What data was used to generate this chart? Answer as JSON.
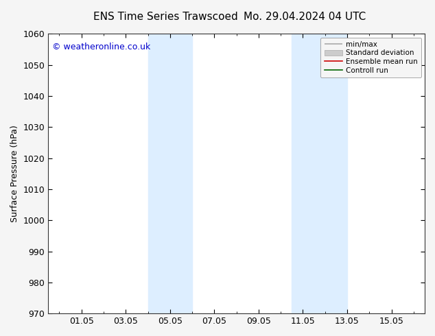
{
  "title_left": "ENS Time Series Trawscoed",
  "title_right": "Mo. 29.04.2024 04 UTC",
  "ylabel": "Surface Pressure (hPa)",
  "ylim": [
    970,
    1060
  ],
  "yticks": [
    970,
    980,
    990,
    1000,
    1010,
    1020,
    1030,
    1040,
    1050,
    1060
  ],
  "xlim_start": -0.5,
  "xlim_end": 16.5,
  "xtick_positions": [
    1,
    3,
    5,
    7,
    9,
    11,
    13,
    15
  ],
  "xtick_labels": [
    "01.05",
    "03.05",
    "05.05",
    "07.05",
    "09.05",
    "11.05",
    "13.05",
    "15.05"
  ],
  "shaded_bands": [
    {
      "xmin": 4.0,
      "xmax": 6.0
    },
    {
      "xmin": 10.5,
      "xmax": 13.0
    }
  ],
  "shade_color": "#ddeeff",
  "watermark": "© weatheronline.co.uk",
  "legend_labels": [
    "min/max",
    "Standard deviation",
    "Ensemble mean run",
    "Controll run"
  ],
  "background_color": "#f5f5f5",
  "plot_bg_color": "#ffffff",
  "title_fontsize": 11,
  "label_fontsize": 9,
  "tick_fontsize": 9,
  "watermark_color": "#0000cc",
  "watermark_fontsize": 9
}
